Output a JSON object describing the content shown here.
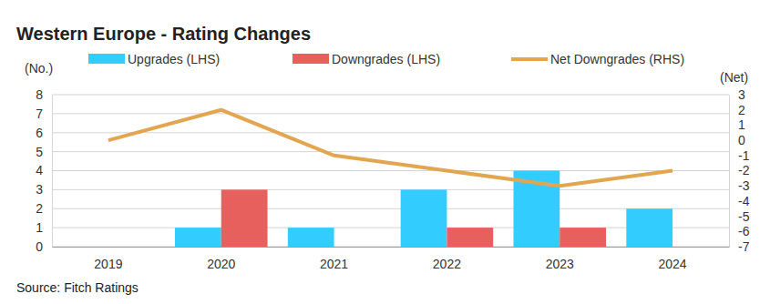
{
  "chart_data": {
    "type": "bar",
    "title": "Western Europe - Rating Changes",
    "categories": [
      "2019",
      "2020",
      "2021",
      "2022",
      "2023",
      "2024"
    ],
    "series": [
      {
        "name": "Upgrades (LHS)",
        "color": "#33ccff",
        "values": [
          0,
          1,
          1,
          3,
          4,
          2
        ]
      },
      {
        "name": "Downgrades (LHS)",
        "color": "#e8605d",
        "values": [
          0,
          3,
          0,
          1,
          1,
          0
        ]
      },
      {
        "name": "Net Downgrades (RHS)",
        "color": "#e3a650",
        "type": "line",
        "axis": "y2",
        "values": [
          0,
          2,
          -1,
          -2,
          -3,
          -2
        ]
      }
    ],
    "y_label": "(No.)",
    "y2_label": "(Net)",
    "ylim": [
      0,
      8
    ],
    "yticks": [
      0,
      1,
      2,
      3,
      4,
      5,
      6,
      7,
      8
    ],
    "y2lim": [
      -7,
      3
    ],
    "y2ticks": [
      -7,
      -6,
      -5,
      -4,
      -3,
      -2,
      -1,
      0,
      1,
      2,
      3
    ],
    "grid": true,
    "legend": "top",
    "source": "Source: Fitch Ratings"
  }
}
